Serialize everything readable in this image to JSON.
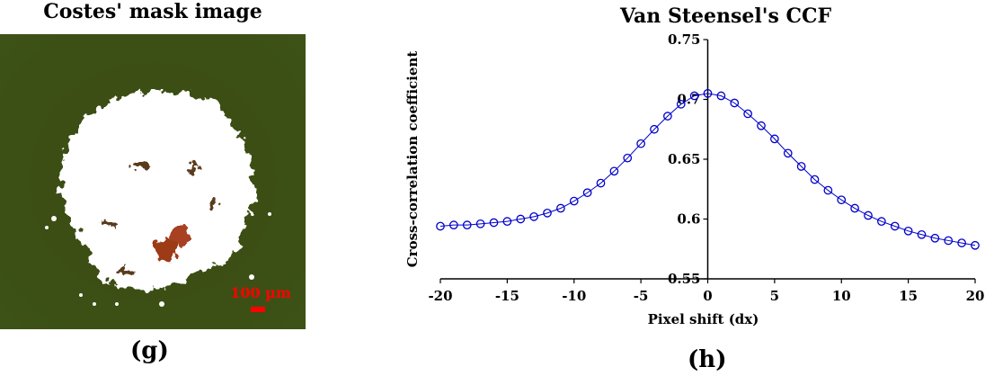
{
  "left_panel": {
    "title": "Costes' mask image",
    "scale_bar_label": "100 µm",
    "panel_label": "(g)",
    "colors": {
      "background": "#3b4f14",
      "mask": "#ffffff",
      "scale_bar": "#ff0000",
      "red_spots": "#b03a1a"
    }
  },
  "right_panel": {
    "panel_label": "(h)"
  },
  "chart_data": {
    "type": "scatter",
    "title": "Van Steensel's CCF",
    "xlabel": "Pixel shift (dx)",
    "ylabel": "Cross-correlation coefficient",
    "xlim": [
      -20,
      20
    ],
    "ylim": [
      0.55,
      0.75
    ],
    "xticks": [
      -20,
      -15,
      -10,
      -5,
      0,
      5,
      10,
      15,
      20
    ],
    "yticks": [
      0.55,
      0.6,
      0.65,
      0.7,
      0.75
    ],
    "ytick_labels": [
      "0.55",
      "0.6",
      "0.65",
      "0.7",
      "0.75"
    ],
    "grid": false,
    "marker": "open-circle",
    "connected_line": true,
    "color": "#0000cc",
    "series": [
      {
        "x": [
          -20,
          -19,
          -18,
          -17,
          -16,
          -15,
          -14,
          -13,
          -12,
          -11,
          -10,
          -9,
          -8,
          -7,
          -6,
          -5,
          -4,
          -3,
          -2,
          -1,
          0,
          1,
          2,
          3,
          4,
          5,
          6,
          7,
          8,
          9,
          10,
          11,
          12,
          13,
          14,
          15,
          16,
          17,
          18,
          19,
          20
        ],
        "values": [
          0.594,
          0.595,
          0.595,
          0.596,
          0.597,
          0.598,
          0.6,
          0.602,
          0.605,
          0.609,
          0.615,
          0.622,
          0.63,
          0.64,
          0.651,
          0.663,
          0.675,
          0.686,
          0.696,
          0.703,
          0.705,
          0.703,
          0.697,
          0.688,
          0.678,
          0.667,
          0.655,
          0.644,
          0.633,
          0.624,
          0.616,
          0.609,
          0.603,
          0.598,
          0.594,
          0.59,
          0.587,
          0.584,
          0.582,
          0.58,
          0.578
        ]
      }
    ]
  }
}
